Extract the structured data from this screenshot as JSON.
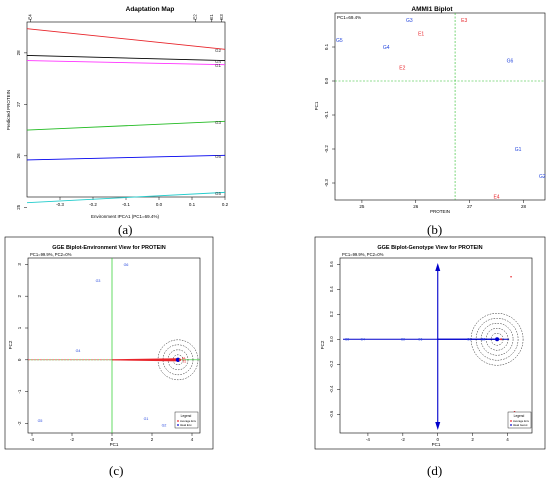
{
  "captions": [
    "(a)",
    "(b)",
    "(c)",
    "(d)"
  ],
  "chart_data": [
    {
      "type": "line",
      "title": "Adaptation Map",
      "xlabel": "Environment IPCA1 (PC1=69.4%)",
      "ylabel": "Predicted PROTEIN",
      "xlim": [
        -0.4,
        0.2
      ],
      "ylim": [
        25.2,
        28.6
      ],
      "x_ticks": [
        "-0.3",
        "-0.2",
        "-0.1",
        "0.0",
        "0.1",
        "0.2"
      ],
      "y_ticks": [
        "25",
        "26",
        "27",
        "28"
      ],
      "top_labels": [
        {
          "label": "E4",
          "x": -0.39
        },
        {
          "label": "E2",
          "x": 0.11
        },
        {
          "label": "E1",
          "x": 0.16
        },
        {
          "label": "E3",
          "x": 0.19
        }
      ],
      "series": [
        {
          "name": "G2",
          "color": "#e8242a",
          "values": [
            28.47,
            28.07
          ]
        },
        {
          "name": "G4",
          "color": "#000000",
          "values": [
            27.95,
            27.85
          ]
        },
        {
          "name": "G1",
          "color": "#ff33ff",
          "values": [
            27.85,
            27.77
          ]
        },
        {
          "name": "G3",
          "color": "#22bb22",
          "values": [
            26.5,
            26.67
          ]
        },
        {
          "name": "G6",
          "color": "#0000ee",
          "values": [
            25.92,
            26.01
          ]
        },
        {
          "name": "G5",
          "color": "#22cccc",
          "values": [
            25.09,
            25.29
          ]
        }
      ],
      "x": [
        -0.4,
        0.2
      ]
    },
    {
      "type": "scatter",
      "title": "AMMI1 Biplot",
      "subtitle": "PC1=69.4%",
      "xlabel": "PROTEIN",
      "ylabel": "PC1",
      "xlim": [
        24.5,
        28.4
      ],
      "ylim": [
        -0.35,
        0.2
      ],
      "x_ticks": [
        "25",
        "26",
        "27",
        "28"
      ],
      "y_ticks": [
        "-0.3",
        "-0.2",
        "-0.1",
        "0.0",
        "0.1"
      ],
      "ref_x": 26.73,
      "ref_y": 0.0,
      "genotype_color": "#2244dd",
      "environment_color": "#e8242a",
      "points": [
        {
          "label": "G5",
          "x": 24.58,
          "y": 0.12,
          "group": "genotype"
        },
        {
          "label": "G3",
          "x": 25.88,
          "y": 0.18,
          "group": "genotype"
        },
        {
          "label": "G4",
          "x": 25.45,
          "y": 0.1,
          "group": "genotype"
        },
        {
          "label": "G6",
          "x": 27.75,
          "y": 0.06,
          "group": "genotype"
        },
        {
          "label": "G1",
          "x": 27.9,
          "y": -0.2,
          "group": "genotype"
        },
        {
          "label": "G2",
          "x": 28.35,
          "y": -0.28,
          "group": "genotype"
        },
        {
          "label": "E3",
          "x": 26.9,
          "y": 0.18,
          "group": "environment"
        },
        {
          "label": "E1",
          "x": 26.1,
          "y": 0.14,
          "group": "environment"
        },
        {
          "label": "E2",
          "x": 25.75,
          "y": 0.04,
          "group": "environment"
        },
        {
          "label": "E4",
          "x": 27.5,
          "y": -0.34,
          "group": "environment"
        }
      ]
    },
    {
      "type": "scatter",
      "title": "GGE Biplot-Environment View for PROTEIN",
      "subtitle": "PC1=99.9%, PC2=0%",
      "xlabel": "PC1",
      "ylabel": "PC2",
      "xlim": [
        -4.2,
        4.4
      ],
      "ylim": [
        -2.3,
        3.2
      ],
      "x_ticks": [
        "-4",
        "-2",
        "0",
        "2",
        "4"
      ],
      "y_ticks": [
        "-2",
        "-1",
        "0",
        "1",
        "2",
        "3"
      ],
      "legend": {
        "title": "Legend",
        "items": [
          "Average Env",
          "Ideal Env"
        ],
        "position": "bottom-right"
      },
      "ideal_point": {
        "x": 3.3,
        "y": 0.0
      },
      "points": [
        {
          "label": "G6",
          "x": 0.7,
          "y": 3.0
        },
        {
          "label": "G3",
          "x": -0.7,
          "y": 2.5
        },
        {
          "label": "G4",
          "x": -1.7,
          "y": 0.3
        },
        {
          "label": "G5",
          "x": -3.6,
          "y": -1.9
        },
        {
          "label": "G1",
          "x": 1.7,
          "y": -1.85
        },
        {
          "label": "G2",
          "x": 2.6,
          "y": -2.05
        }
      ],
      "environment_labels": [
        "E4",
        "E3",
        "E2"
      ]
    },
    {
      "type": "scatter",
      "title": "GGE Biplot-Genotype View for PROTEIN",
      "subtitle": "PC1=99.9%, PC2=0%",
      "xlabel": "PC1",
      "ylabel": "PC2",
      "xlim": [
        -5.6,
        5.4
      ],
      "ylim": [
        -0.75,
        0.65
      ],
      "x_ticks": [
        "-4",
        "-2",
        "0",
        "2",
        "4"
      ],
      "y_ticks": [
        "-0.6",
        "-0.4",
        "-0.2",
        "0.0",
        "0.2",
        "0.4",
        "0.6"
      ],
      "legend": {
        "title": "Legend",
        "items": [
          "Average Env",
          "Ideal Genot"
        ],
        "position": "bottom-right"
      },
      "ideal_point": {
        "x": 3.4,
        "y": 0.0
      },
      "genotype_labels": [
        "G5",
        "G4",
        "G3",
        "G6",
        "G1",
        "G2"
      ],
      "environment_points": [
        {
          "x": 4.2,
          "y": 0.5
        },
        {
          "x": 4.4,
          "y": -0.58
        }
      ]
    }
  ]
}
